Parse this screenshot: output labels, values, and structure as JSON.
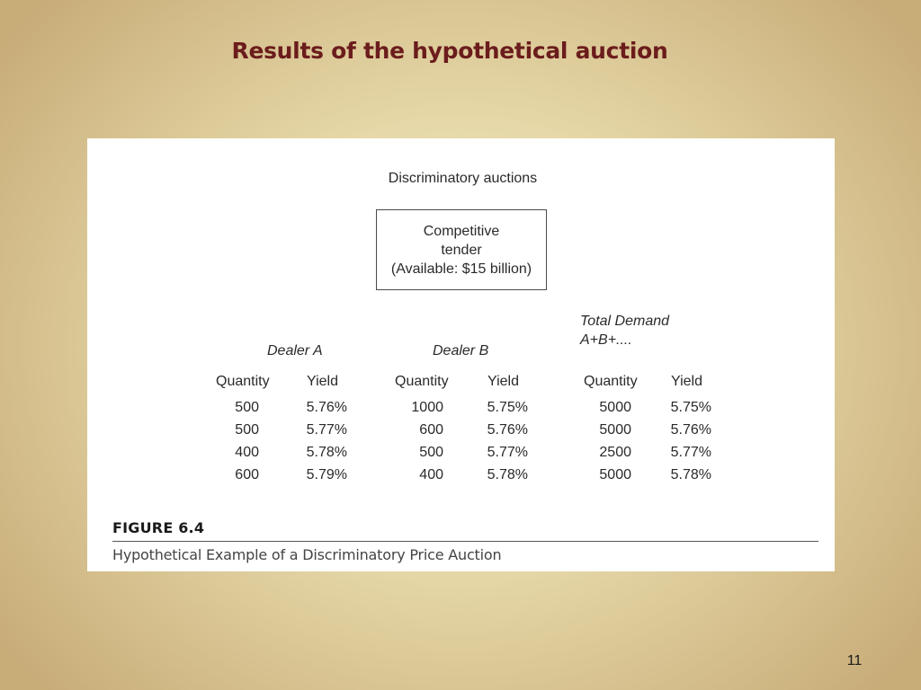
{
  "slide": {
    "title": "Results of the hypothetical auction",
    "page_number": "11"
  },
  "figure": {
    "heading": "Discriminatory auctions",
    "tender_box": {
      "line1": "Competitive",
      "line2": "tender",
      "line3": "(Available: $15 billion)"
    },
    "dealer_a": {
      "title": "Dealer A",
      "columns": [
        "Quantity",
        "Yield"
      ],
      "rows": [
        [
          "500",
          "5.76%"
        ],
        [
          "500",
          "5.77%"
        ],
        [
          "400",
          "5.78%"
        ],
        [
          "600",
          "5.79%"
        ]
      ]
    },
    "dealer_b": {
      "title": "Dealer B",
      "columns": [
        "Quantity",
        "Yield"
      ],
      "rows": [
        [
          "1000",
          "5.75%"
        ],
        [
          "600",
          "5.76%"
        ],
        [
          "500",
          "5.77%"
        ],
        [
          "400",
          "5.78%"
        ]
      ]
    },
    "total": {
      "title_line1": "Total Demand",
      "title_line2": "A+B+....",
      "columns": [
        "Quantity",
        "Yield"
      ],
      "rows": [
        [
          "5000",
          "5.75%"
        ],
        [
          "5000",
          "5.76%"
        ],
        [
          "2500",
          "5.77%"
        ],
        [
          "5000",
          "5.78%"
        ]
      ]
    },
    "label": "FIGURE 6.4",
    "caption": "Hypothetical Example of a Discriminatory Price Auction"
  }
}
